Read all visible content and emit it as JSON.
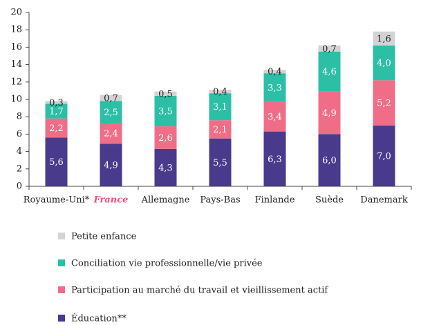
{
  "chart_data": {
    "type": "stacked_bar",
    "categories": [
      "Royaume-Uni*",
      "France",
      "Allemagne",
      "Pays-Bas",
      "Finlande",
      "Suède",
      "Danemark"
    ],
    "series": [
      {
        "name": "Éducation**",
        "color": "#4a3a8c",
        "values": [
          5.6,
          4.9,
          4.3,
          5.5,
          6.3,
          6.0,
          7.0
        ],
        "value_labels": [
          "5,6",
          "4,9",
          "4,3",
          "5,5",
          "6,3",
          "6,0",
          "7,0"
        ]
      },
      {
        "name": "Participation au marché du travail et vieillissement actif",
        "color": "#f06d88",
        "values": [
          2.2,
          2.4,
          2.6,
          2.1,
          3.4,
          4.9,
          5.2
        ],
        "value_labels": [
          "2,2",
          "2,4",
          "2,6",
          "2,1",
          "3,4",
          "4,9",
          "5,2"
        ]
      },
      {
        "name": "Conciliation vie professionnelle/vie privée",
        "color": "#2dbfa5",
        "values": [
          1.7,
          2.5,
          3.5,
          3.1,
          3.3,
          4.6,
          4.0
        ],
        "value_labels": [
          "1,7",
          "2,5",
          "3,5",
          "3,1",
          "3,3",
          "4,6",
          "4,0"
        ]
      },
      {
        "name": "Petite enfance",
        "color": "#d3d3d3",
        "values": [
          0.3,
          0.7,
          0.5,
          0.4,
          0.4,
          0.7,
          1.6
        ],
        "value_labels": [
          "0,3",
          "0,7",
          "0,5",
          "0,4",
          "0,4",
          "0,7",
          "1,6"
        ]
      }
    ],
    "ylim": [
      0,
      20
    ],
    "yticks": [
      0,
      2,
      4,
      6,
      8,
      10,
      12,
      14,
      16,
      18,
      20
    ],
    "grid": false
  }
}
